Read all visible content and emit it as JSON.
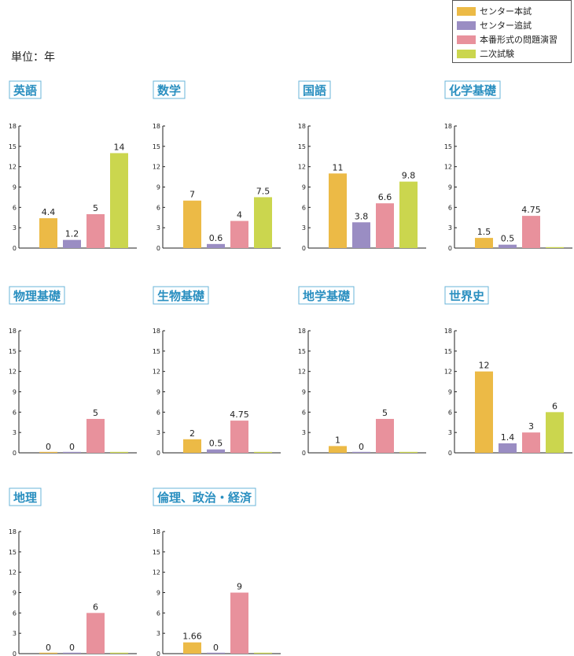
{
  "unit_label": "単位：年",
  "legend": [
    {
      "label": "センター本試",
      "color": "#ECBA46"
    },
    {
      "label": "センター追試",
      "color": "#9A8DC3"
    },
    {
      "label": "本番形式の問題演習",
      "color": "#E8919C"
    },
    {
      "label": "二次試験",
      "color": "#CBD64E"
    }
  ],
  "colors": {
    "title_text": "#2A8FC0",
    "title_border": "#6AB4D8",
    "axis": "#222222",
    "label": "#222222"
  },
  "chart_data": [
    {
      "type": "bar",
      "title": "英語",
      "categories": [
        "センター本試",
        "センター追試",
        "本番形式の問題演習",
        "二次試験"
      ],
      "values": [
        4.4,
        1.2,
        5,
        14
      ],
      "labels": [
        "4.4",
        "1.2",
        "5",
        "14"
      ],
      "yticks": [
        "0",
        "3",
        "6",
        "9",
        "12",
        "15",
        "18"
      ],
      "ylim": [
        0,
        18
      ]
    },
    {
      "type": "bar",
      "title": "数学",
      "categories": [
        "センター本試",
        "センター追試",
        "本番形式の問題演習",
        "二次試験"
      ],
      "values": [
        7,
        0.6,
        4,
        7.5
      ],
      "labels": [
        "7",
        "0.6",
        "4",
        "7.5"
      ],
      "yticks": [
        "0",
        "3",
        "6",
        "9",
        "12",
        "15",
        "18"
      ],
      "ylim": [
        0,
        18
      ]
    },
    {
      "type": "bar",
      "title": "国語",
      "categories": [
        "センター本試",
        "センター追試",
        "本番形式の問題演習",
        "二次試験"
      ],
      "values": [
        11,
        3.8,
        6.6,
        9.8
      ],
      "labels": [
        "11",
        "3.8",
        "6.6",
        "9.8"
      ],
      "yticks": [
        "0",
        "3",
        "6",
        "9",
        "12",
        "15",
        "18"
      ],
      "ylim": [
        0,
        18
      ]
    },
    {
      "type": "bar",
      "title": "化学基礎",
      "categories": [
        "センター本試",
        "センター追試",
        "本番形式の問題演習",
        "二次試験"
      ],
      "values": [
        1.5,
        0.5,
        4.75,
        0
      ],
      "labels": [
        "1.5",
        "0.5",
        "4.75",
        ""
      ],
      "yticks": [
        "0",
        "3",
        "6",
        "9",
        "12",
        "15",
        "18"
      ],
      "ylim": [
        0,
        18
      ]
    },
    {
      "type": "bar",
      "title": "物理基礎",
      "categories": [
        "センター本試",
        "センター追試",
        "本番形式の問題演習",
        "二次試験"
      ],
      "values": [
        0,
        0,
        5,
        0
      ],
      "labels": [
        "0",
        "0",
        "5",
        ""
      ],
      "yticks": [
        "0",
        "3",
        "6",
        "9",
        "12",
        "15",
        "18"
      ],
      "ylim": [
        0,
        18
      ]
    },
    {
      "type": "bar",
      "title": "生物基礎",
      "categories": [
        "センター本試",
        "センター追試",
        "本番形式の問題演習",
        "二次試験"
      ],
      "values": [
        2,
        0.5,
        4.75,
        0
      ],
      "labels": [
        "2",
        "0.5",
        "4.75",
        ""
      ],
      "yticks": [
        "0",
        "3",
        "6",
        "9",
        "12",
        "15",
        "18"
      ],
      "ylim": [
        0,
        18
      ]
    },
    {
      "type": "bar",
      "title": "地学基礎",
      "categories": [
        "センター本試",
        "センター追試",
        "本番形式の問題演習",
        "二次試験"
      ],
      "values": [
        1,
        0,
        5,
        0
      ],
      "labels": [
        "1",
        "0",
        "5",
        ""
      ],
      "yticks": [
        "0",
        "3",
        "6",
        "9",
        "12",
        "15",
        "18"
      ],
      "ylim": [
        0,
        18
      ]
    },
    {
      "type": "bar",
      "title": "世界史",
      "categories": [
        "センター本試",
        "センター追試",
        "本番形式の問題演習",
        "二次試験"
      ],
      "values": [
        12,
        1.4,
        3,
        6
      ],
      "labels": [
        "12",
        "1.4",
        "3",
        "6"
      ],
      "yticks": [
        "0",
        "3",
        "6",
        "9",
        "12",
        "15",
        "18"
      ],
      "ylim": [
        0,
        18
      ]
    },
    {
      "type": "bar",
      "title": "地理",
      "categories": [
        "センター本試",
        "センター追試",
        "本番形式の問題演習",
        "二次試験"
      ],
      "values": [
        0,
        0,
        6,
        0
      ],
      "labels": [
        "0",
        "0",
        "6",
        ""
      ],
      "yticks": [
        "0",
        "3",
        "6",
        "9",
        "12",
        "15",
        "18"
      ],
      "ylim": [
        0,
        18
      ]
    },
    {
      "type": "bar",
      "title": "倫理、政治・経済",
      "categories": [
        "センター本試",
        "センター追試",
        "本番形式の問題演習",
        "二次試験"
      ],
      "values": [
        1.66,
        0,
        9,
        0
      ],
      "labels": [
        "1.66",
        "0",
        "9",
        ""
      ],
      "yticks": [
        "0",
        "3",
        "6",
        "9",
        "12",
        "15",
        "18"
      ],
      "ylim": [
        0,
        18
      ]
    }
  ]
}
